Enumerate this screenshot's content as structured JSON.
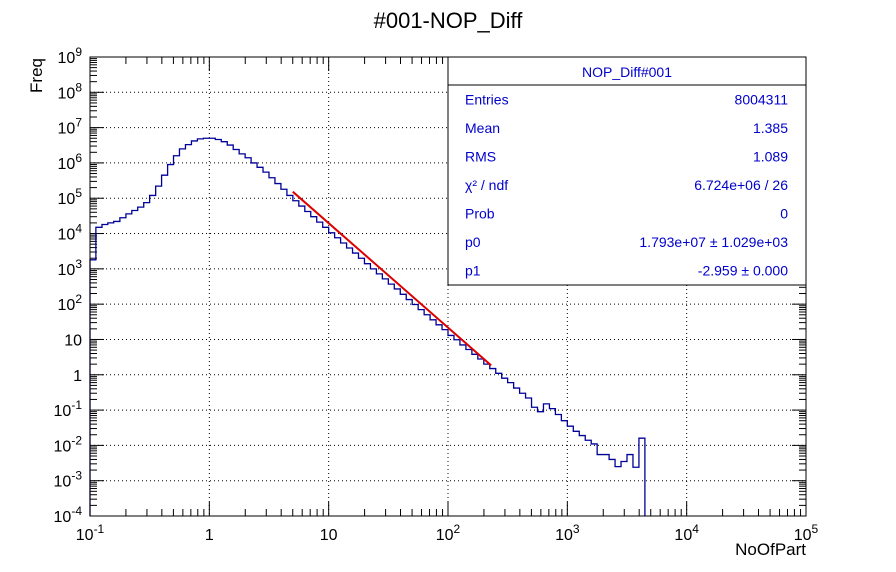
{
  "chart_data": {
    "type": "histogram",
    "title": "#001-NOP_Diff",
    "xlabel": "NoOfPart",
    "ylabel": "Freq",
    "x_scale": "log",
    "y_scale": "log",
    "xlim": [
      0.1,
      100000
    ],
    "ylim": [
      0.0001,
      1000000000
    ],
    "grid": true,
    "x_tick_labels": [
      {
        "base": "10",
        "exp": "-1",
        "value": 0.1
      },
      {
        "base": "1",
        "exp": "",
        "value": 1
      },
      {
        "base": "10",
        "exp": "",
        "value": 10
      },
      {
        "base": "10",
        "exp": "2",
        "value": 100
      },
      {
        "base": "10",
        "exp": "3",
        "value": 1000
      },
      {
        "base": "10",
        "exp": "4",
        "value": 10000
      },
      {
        "base": "10",
        "exp": "5",
        "value": 100000
      }
    ],
    "y_tick_labels": [
      {
        "base": "10",
        "exp": "9",
        "value": 1000000000
      },
      {
        "base": "10",
        "exp": "8",
        "value": 100000000
      },
      {
        "base": "10",
        "exp": "7",
        "value": 10000000
      },
      {
        "base": "10",
        "exp": "6",
        "value": 1000000
      },
      {
        "base": "10",
        "exp": "5",
        "value": 100000
      },
      {
        "base": "10",
        "exp": "4",
        "value": 10000
      },
      {
        "base": "10",
        "exp": "3",
        "value": 1000
      },
      {
        "base": "10",
        "exp": "2",
        "value": 100
      },
      {
        "base": "10",
        "exp": "",
        "value": 10
      },
      {
        "base": "1",
        "exp": "",
        "value": 1
      },
      {
        "base": "10",
        "exp": "-1",
        "value": 0.1
      },
      {
        "base": "10",
        "exp": "-2",
        "value": 0.01
      },
      {
        "base": "10",
        "exp": "-3",
        "value": 0.001
      },
      {
        "base": "10",
        "exp": "-4",
        "value": 0.0001
      }
    ],
    "histogram": {
      "color": "#000099",
      "bin_edges": [
        0.1,
        0.112,
        0.126,
        0.141,
        0.158,
        0.178,
        0.2,
        0.224,
        0.251,
        0.282,
        0.316,
        0.355,
        0.398,
        0.447,
        0.501,
        0.562,
        0.631,
        0.708,
        0.794,
        0.891,
        1.0,
        1.122,
        1.259,
        1.413,
        1.585,
        1.778,
        1.995,
        2.239,
        2.512,
        2.818,
        3.162,
        3.548,
        3.981,
        4.467,
        5.012,
        5.623,
        6.31,
        7.079,
        7.943,
        8.913,
        10.0,
        11.22,
        12.59,
        14.13,
        15.85,
        17.78,
        19.95,
        22.39,
        25.12,
        28.18,
        31.62,
        35.48,
        39.81,
        44.67,
        50.12,
        56.23,
        63.1,
        70.79,
        79.43,
        89.13,
        100.0,
        112.2,
        125.9,
        141.3,
        158.5,
        177.8,
        199.5,
        223.9,
        251.2,
        281.8,
        316.2,
        354.8,
        398.1,
        446.7,
        501.2,
        562.3,
        631.0,
        707.9,
        794.3,
        891.3,
        1000.0,
        1122.0,
        1259.0,
        1413.0,
        1585.0,
        1778.0,
        1995.0,
        2239.0,
        2512.0,
        2818.0,
        3162.0,
        3548.0,
        3981.0,
        4467.0
      ],
      "counts": [
        1800,
        15000,
        18000,
        20000,
        22000,
        28000,
        36000,
        45000,
        56000,
        75000,
        120000,
        220000,
        450000,
        900000,
        1600000,
        2500000,
        3300000,
        4200000,
        4800000,
        5000000,
        5000000,
        4600000,
        4000000,
        3200000,
        2400000,
        1800000,
        1400000,
        1000000,
        750000,
        550000,
        380000,
        260000,
        180000,
        120000,
        85000,
        60000,
        42000,
        30000,
        21000,
        15000,
        10500,
        7600,
        5400,
        3900,
        2800,
        2000,
        1400,
        1000,
        720,
        520,
        370,
        270,
        190,
        135,
        98,
        70,
        50,
        36,
        26,
        19,
        13,
        9.8,
        7.0,
        5.2,
        3.8,
        2.8,
        2.0,
        1.5,
        1.1,
        0.8,
        0.6,
        0.42,
        0.3,
        0.22,
        0.12,
        0.09,
        0.15,
        0.11,
        0.075,
        0.05,
        0.035,
        0.025,
        0.019,
        0.014,
        0.011,
        0.0055,
        0.0055,
        0.004,
        0.0025,
        0.0035,
        0.0055,
        0.0024,
        0.016
      ]
    },
    "fit": {
      "color": "#dd0000",
      "p0": 17930000,
      "p1": -2.959,
      "x_range": [
        5.0,
        230
      ]
    },
    "stats_box": {
      "title": "NOP_Diff#001",
      "rows": [
        {
          "label": "Entries",
          "value": "8004311"
        },
        {
          "label": "Mean",
          "value": "1.385"
        },
        {
          "label": "RMS",
          "value": "1.089"
        },
        {
          "label": "χ² / ndf",
          "value": "6.724e+06 / 26"
        },
        {
          "label": "Prob",
          "value": "0"
        },
        {
          "label": "p0",
          "value": "1.793e+07 ± 1.029e+03"
        },
        {
          "label": "p1",
          "value": "-2.959 ± 0.000"
        }
      ]
    }
  }
}
